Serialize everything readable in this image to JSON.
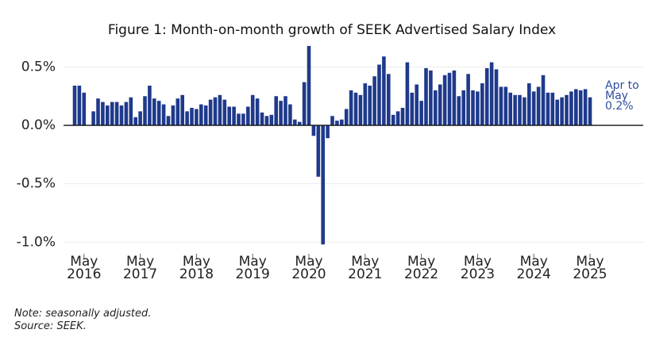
{
  "chart_data": {
    "type": "bar",
    "title": "Figure 1: Month-on-month growth of SEEK Advertised Salary Index",
    "categories": [
      null,
      null,
      "May 2016",
      null,
      null,
      null,
      null,
      null,
      null,
      null,
      null,
      null,
      null,
      null,
      "May 2017",
      null,
      null,
      null,
      null,
      null,
      null,
      null,
      null,
      null,
      null,
      null,
      "May 2018",
      null,
      null,
      null,
      null,
      null,
      null,
      null,
      null,
      null,
      null,
      null,
      "May 2019",
      null,
      null,
      null,
      null,
      null,
      null,
      null,
      null,
      null,
      null,
      null,
      "May 2020",
      null,
      null,
      null,
      null,
      null,
      null,
      null,
      null,
      null,
      null,
      null,
      "May 2021",
      null,
      null,
      null,
      null,
      null,
      null,
      null,
      null,
      null,
      null,
      null,
      "May 2022",
      null,
      null,
      null,
      null,
      null,
      null,
      null,
      null,
      null,
      null,
      null,
      "May 2023",
      null,
      null,
      null,
      null,
      null,
      null,
      null,
      null,
      null,
      null,
      null,
      "May 2024",
      null,
      null,
      null,
      null,
      null,
      null,
      null,
      null,
      null,
      null,
      null,
      "May 2025"
    ],
    "values": [
      0.34,
      0.34,
      0.28,
      0.0,
      0.12,
      0.23,
      0.2,
      0.17,
      0.2,
      0.2,
      0.17,
      0.2,
      0.24,
      0.07,
      0.12,
      0.25,
      0.34,
      0.23,
      0.21,
      0.18,
      0.08,
      0.17,
      0.23,
      0.26,
      0.12,
      0.15,
      0.14,
      0.18,
      0.17,
      0.22,
      0.24,
      0.26,
      0.22,
      0.16,
      0.16,
      0.1,
      0.1,
      0.16,
      0.26,
      0.23,
      0.11,
      0.08,
      0.09,
      0.25,
      0.21,
      0.25,
      0.18,
      0.05,
      0.03,
      0.37,
      0.68,
      -0.09,
      -0.44,
      -1.02,
      -0.11,
      0.08,
      0.04,
      0.05,
      0.14,
      0.3,
      0.28,
      0.26,
      0.36,
      0.34,
      0.42,
      0.52,
      0.59,
      0.44,
      0.09,
      0.12,
      0.15,
      0.54,
      0.28,
      0.35,
      0.21,
      0.49,
      0.47,
      0.3,
      0.35,
      0.43,
      0.45,
      0.47,
      0.25,
      0.3,
      0.44,
      0.3,
      0.29,
      0.36,
      0.49,
      0.54,
      0.48,
      0.33,
      0.33,
      0.28,
      0.26,
      0.26,
      0.24,
      0.36,
      0.29,
      0.33,
      0.43,
      0.28,
      0.28,
      0.22,
      0.24,
      0.26,
      0.29,
      0.31,
      0.3,
      0.31,
      0.24
    ],
    "color": "#1f3a8c",
    "ylim": [
      -1.1,
      0.7
    ],
    "yticks": [
      {
        "value": -1.0,
        "label": "-1.0%"
      },
      {
        "value": -0.5,
        "label": "-0.5%"
      },
      {
        "value": 0.0,
        "label": "0.0%"
      },
      {
        "value": 0.5,
        "label": "0.5%"
      }
    ],
    "grid": true,
    "annotation": "Apr to May 0.2%",
    "annotation_color": "#2f4f9f",
    "notes": [
      "Note: seasonally adjusted.",
      "Source: SEEK."
    ]
  }
}
